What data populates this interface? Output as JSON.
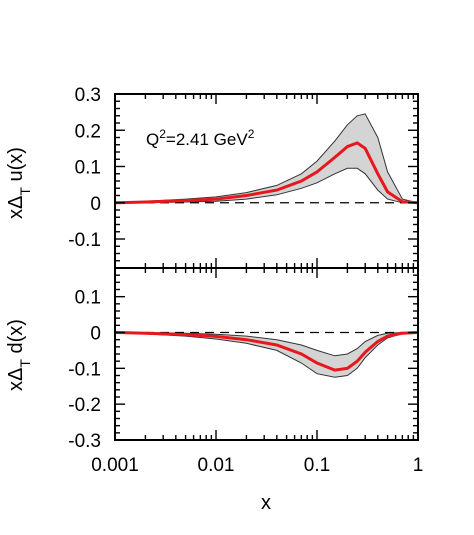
{
  "chart_data": [
    {
      "type": "area",
      "panel": "top",
      "ylabel_base": "xΔ",
      "ylabel_sub": "T",
      "ylabel_tail": " u(x)",
      "xscale": "log",
      "xlim": [
        0.001,
        1
      ],
      "ylim": [
        -0.18,
        0.3
      ],
      "yticks": [
        {
          "value": 0.3,
          "label": "0.3"
        },
        {
          "value": 0.2,
          "label": "0.2"
        },
        {
          "value": 0.1,
          "label": "0.1"
        },
        {
          "value": 0.0,
          "label": "0"
        },
        {
          "value": -0.1,
          "label": "-0.1"
        }
      ],
      "annotation": {
        "base": "Q",
        "sup1": "2",
        "mid": "=2.41 GeV",
        "sup2": "2"
      },
      "x": [
        0.001,
        0.002,
        0.005,
        0.01,
        0.02,
        0.04,
        0.07,
        0.1,
        0.15,
        0.2,
        0.25,
        0.3,
        0.4,
        0.5,
        0.7,
        1.0
      ],
      "central": [
        0.0,
        0.002,
        0.006,
        0.01,
        0.02,
        0.035,
        0.06,
        0.085,
        0.125,
        0.155,
        0.165,
        0.15,
        0.08,
        0.03,
        0.003,
        0.0
      ],
      "upper": [
        0.0,
        0.004,
        0.01,
        0.016,
        0.028,
        0.048,
        0.08,
        0.115,
        0.17,
        0.215,
        0.24,
        0.245,
        0.18,
        0.085,
        0.01,
        0.0
      ],
      "lower": [
        0.0,
        0.0,
        0.002,
        0.004,
        0.01,
        0.022,
        0.04,
        0.055,
        0.08,
        0.095,
        0.095,
        0.08,
        0.035,
        0.01,
        0.0,
        0.0
      ]
    },
    {
      "type": "area",
      "panel": "bottom",
      "ylabel_base": "xΔ",
      "ylabel_sub": "T",
      "ylabel_tail": " d(x)",
      "xlabel": "x",
      "xscale": "log",
      "xlim": [
        0.001,
        1
      ],
      "ylim": [
        -0.3,
        0.18
      ],
      "xticks": [
        {
          "value": 0.001,
          "label": "0.001"
        },
        {
          "value": 0.01,
          "label": "0.01"
        },
        {
          "value": 0.1,
          "label": "0.1"
        },
        {
          "value": 1,
          "label": "1"
        }
      ],
      "yticks": [
        {
          "value": 0.1,
          "label": "0.1"
        },
        {
          "value": 0.0,
          "label": "0"
        },
        {
          "value": -0.1,
          "label": "-0.1"
        },
        {
          "value": -0.2,
          "label": "-0.2"
        },
        {
          "value": -0.3,
          "label": "-0.3"
        }
      ],
      "x": [
        0.001,
        0.002,
        0.005,
        0.01,
        0.02,
        0.04,
        0.07,
        0.1,
        0.15,
        0.2,
        0.25,
        0.3,
        0.4,
        0.5,
        0.7,
        1.0
      ],
      "central": [
        0.0,
        -0.002,
        -0.006,
        -0.011,
        -0.02,
        -0.035,
        -0.06,
        -0.085,
        -0.105,
        -0.1,
        -0.08,
        -0.055,
        -0.025,
        -0.01,
        -0.002,
        0.0
      ],
      "upper": [
        0.0,
        0.0,
        -0.002,
        -0.005,
        -0.01,
        -0.02,
        -0.035,
        -0.05,
        -0.065,
        -0.06,
        -0.045,
        -0.025,
        -0.008,
        -0.002,
        0.0,
        0.0
      ],
      "lower": [
        0.0,
        -0.004,
        -0.01,
        -0.018,
        -0.03,
        -0.05,
        -0.085,
        -0.115,
        -0.125,
        -0.12,
        -0.1,
        -0.07,
        -0.035,
        -0.015,
        -0.003,
        0.0
      ]
    }
  ],
  "colors": {
    "central": "#e8161d",
    "band_fill": "#d4d4d4",
    "band_edge": "#333333"
  }
}
